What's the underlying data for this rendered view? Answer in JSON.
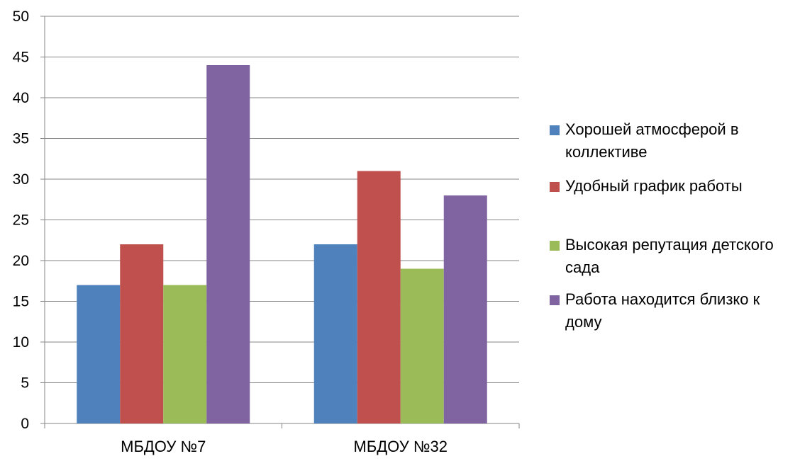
{
  "chart_data": {
    "type": "bar",
    "categories": [
      "МБДОУ №7",
      "МБДОУ №32"
    ],
    "series": [
      {
        "name": "Хорошей атмосферой в коллективе",
        "values": [
          17,
          22
        ],
        "color": "#4F81BD"
      },
      {
        "name": "Удобный график работы",
        "values": [
          22,
          31
        ],
        "color": "#C0504D"
      },
      {
        "name": "Высокая репутация детского сада",
        "values": [
          17,
          19
        ],
        "color": "#9BBB59"
      },
      {
        "name": "Работа находится близко к дому",
        "values": [
          44,
          28
        ],
        "color": "#8064A2"
      }
    ],
    "ylim": [
      0,
      50
    ],
    "yticks": [
      0,
      5,
      10,
      15,
      20,
      25,
      30,
      35,
      40,
      45,
      50
    ],
    "grid": true,
    "legend_position": "right"
  }
}
